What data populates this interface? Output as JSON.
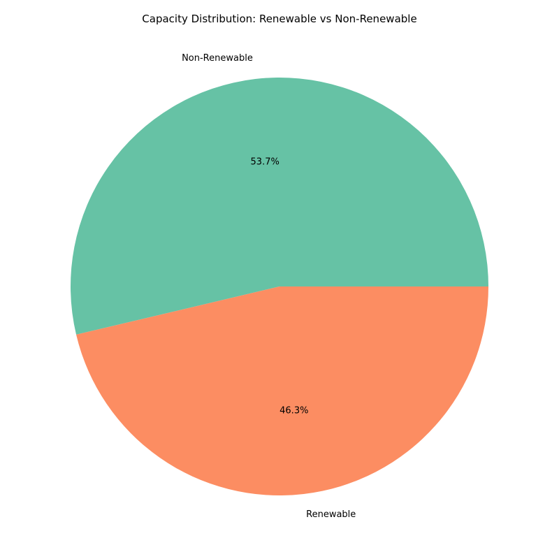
{
  "chart_data": {
    "type": "pie",
    "title": "Capacity Distribution: Renewable vs Non-Renewable",
    "slices": [
      {
        "label": "Non-Renewable",
        "value": 53.7,
        "pct_label": "53.7%",
        "color": "#66c2a5"
      },
      {
        "label": "Renewable",
        "value": 46.3,
        "pct_label": "46.3%",
        "color": "#fc8d62"
      }
    ],
    "start_angle_deg": 0,
    "direction": "counterclockwise"
  }
}
